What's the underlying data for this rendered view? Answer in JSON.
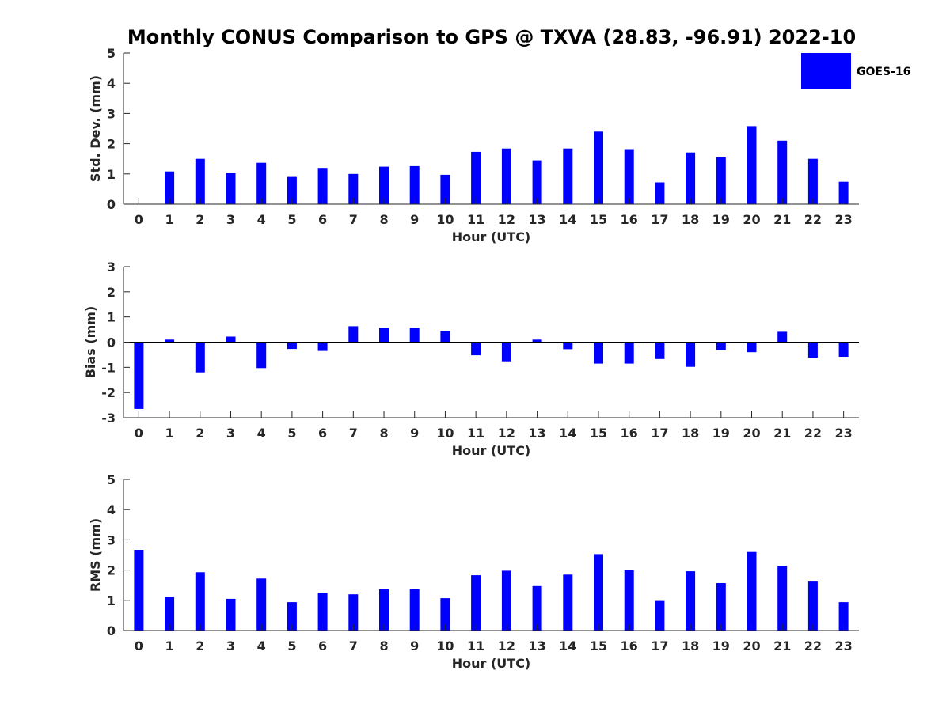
{
  "title": "Monthly CONUS Comparison to GPS @ TXVA (28.83, -96.91) 2022-10",
  "legend": {
    "label": "GOES-16",
    "color": "#0000ff",
    "placement": "top-right"
  },
  "chart_data": [
    {
      "type": "bar",
      "xlabel": "Hour (UTC)",
      "ylabel": "Std. Dev. (mm)",
      "ylim": [
        0,
        5
      ],
      "yticks": [
        0,
        1,
        2,
        3,
        4,
        5
      ],
      "categories": [
        "0",
        "1",
        "2",
        "3",
        "4",
        "5",
        "6",
        "7",
        "8",
        "9",
        "10",
        "11",
        "12",
        "13",
        "14",
        "15",
        "16",
        "17",
        "18",
        "19",
        "20",
        "21",
        "22",
        "23"
      ],
      "series": [
        {
          "name": "GOES-16",
          "values": [
            0.0,
            1.08,
            1.5,
            1.02,
            1.37,
            0.9,
            1.2,
            1.0,
            1.24,
            1.26,
            0.97,
            1.73,
            1.84,
            1.45,
            1.84,
            2.4,
            1.82,
            0.72,
            1.71,
            1.55,
            2.58,
            2.1,
            1.5,
            0.74
          ]
        }
      ]
    },
    {
      "type": "bar",
      "xlabel": "Hour (UTC)",
      "ylabel": "Bias (mm)",
      "ylim": [
        -3,
        3
      ],
      "yticks": [
        -3,
        -2,
        -1,
        0,
        1,
        2,
        3
      ],
      "categories": [
        "0",
        "1",
        "2",
        "3",
        "4",
        "5",
        "6",
        "7",
        "8",
        "9",
        "10",
        "11",
        "12",
        "13",
        "14",
        "15",
        "16",
        "17",
        "18",
        "19",
        "20",
        "21",
        "22",
        "23"
      ],
      "series": [
        {
          "name": "GOES-16",
          "values": [
            -2.65,
            0.1,
            -1.2,
            0.22,
            -1.03,
            -0.27,
            -0.35,
            0.63,
            0.57,
            0.57,
            0.45,
            -0.52,
            -0.76,
            0.1,
            -0.28,
            -0.85,
            -0.85,
            -0.67,
            -0.98,
            -0.32,
            -0.4,
            0.41,
            -0.62,
            -0.58
          ]
        }
      ]
    },
    {
      "type": "bar",
      "xlabel": "Hour (UTC)",
      "ylabel": "RMS (mm)",
      "ylim": [
        0,
        5
      ],
      "yticks": [
        0,
        1,
        2,
        3,
        4,
        5
      ],
      "categories": [
        "0",
        "1",
        "2",
        "3",
        "4",
        "5",
        "6",
        "7",
        "8",
        "9",
        "10",
        "11",
        "12",
        "13",
        "14",
        "15",
        "16",
        "17",
        "18",
        "19",
        "20",
        "21",
        "22",
        "23"
      ],
      "series": [
        {
          "name": "GOES-16",
          "values": [
            2.67,
            1.1,
            1.93,
            1.05,
            1.72,
            0.94,
            1.25,
            1.2,
            1.36,
            1.38,
            1.07,
            1.83,
            1.98,
            1.47,
            1.85,
            2.53,
            1.99,
            0.98,
            1.96,
            1.57,
            2.6,
            2.14,
            1.62,
            0.94
          ]
        }
      ]
    }
  ]
}
